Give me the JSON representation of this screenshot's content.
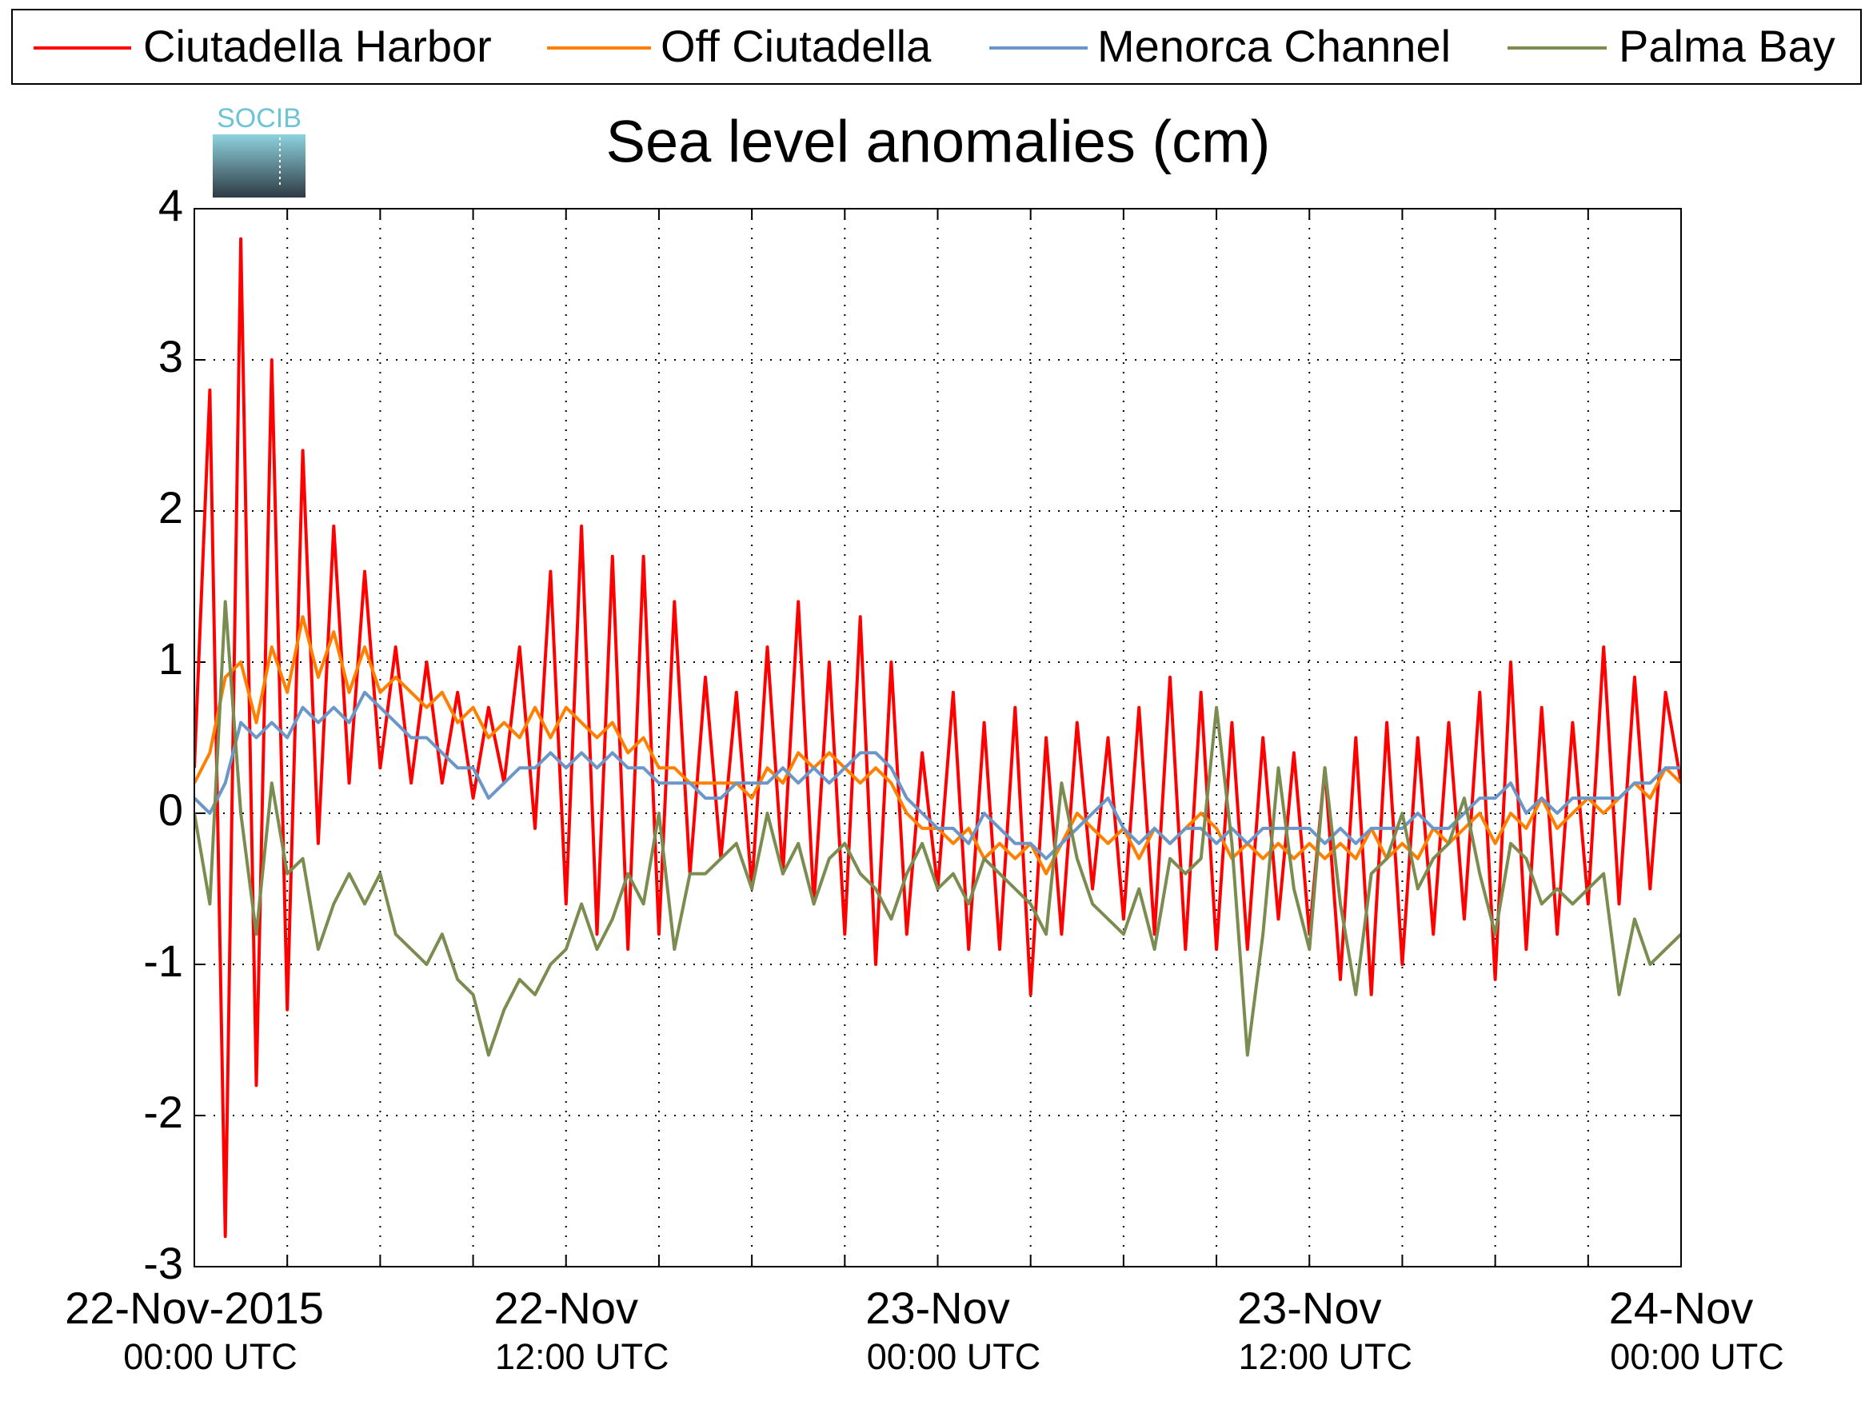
{
  "logo_text": "SOCIB",
  "chart_data": {
    "type": "line",
    "title": "Sea level anomalies (cm)",
    "legend": "top",
    "grid": true,
    "xlim": [
      0,
      48
    ],
    "ylim": [
      -3,
      4
    ],
    "yticks": [
      -3,
      -2,
      -1,
      0,
      1,
      2,
      3,
      4
    ],
    "xgrid": [
      0,
      3,
      6,
      9,
      12,
      15,
      18,
      21,
      24,
      27,
      30,
      33,
      36,
      39,
      42,
      45,
      48
    ],
    "xticks": [
      {
        "value": 0,
        "label": "22-Nov-2015",
        "sublabel": "00:00 UTC"
      },
      {
        "value": 12,
        "label": "22-Nov",
        "sublabel": "12:00 UTC"
      },
      {
        "value": 24,
        "label": "23-Nov",
        "sublabel": "00:00 UTC"
      },
      {
        "value": 36,
        "label": "23-Nov",
        "sublabel": "12:00 UTC"
      },
      {
        "value": 48,
        "label": "24-Nov",
        "sublabel": "00:00 UTC"
      }
    ],
    "x": [
      0,
      0.5,
      1,
      1.5,
      2,
      2.5,
      3,
      3.5,
      4,
      4.5,
      5,
      5.5,
      6,
      6.5,
      7,
      7.5,
      8,
      8.5,
      9,
      9.5,
      10,
      10.5,
      11,
      11.5,
      12,
      12.5,
      13,
      13.5,
      14,
      14.5,
      15,
      15.5,
      16,
      16.5,
      17,
      17.5,
      18,
      18.5,
      19,
      19.5,
      20,
      20.5,
      21,
      21.5,
      22,
      22.5,
      23,
      23.5,
      24,
      24.5,
      25,
      25.5,
      26,
      26.5,
      27,
      27.5,
      28,
      28.5,
      29,
      29.5,
      30,
      30.5,
      31,
      31.5,
      32,
      32.5,
      33,
      33.5,
      34,
      34.5,
      35,
      35.5,
      36,
      36.5,
      37,
      37.5,
      38,
      38.5,
      39,
      39.5,
      40,
      40.5,
      41,
      41.5,
      42,
      42.5,
      43,
      43.5,
      44,
      44.5,
      45,
      45.5,
      46,
      46.5,
      47,
      47.5,
      48
    ],
    "series": [
      {
        "name": "Ciutadella Harbor",
        "color": "#ff0000",
        "values": [
          0.3,
          2.8,
          -2.8,
          3.8,
          -1.8,
          3.0,
          -1.3,
          2.4,
          -0.2,
          1.9,
          0.2,
          1.6,
          0.3,
          1.1,
          0.2,
          1.0,
          0.2,
          0.8,
          0.1,
          0.7,
          0.2,
          1.1,
          -0.1,
          1.6,
          -0.6,
          1.9,
          -0.8,
          1.7,
          -0.9,
          1.7,
          -0.8,
          1.4,
          -0.4,
          0.9,
          -0.3,
          0.8,
          -0.5,
          1.1,
          -0.4,
          1.4,
          -0.6,
          1.0,
          -0.8,
          1.3,
          -1.0,
          1.0,
          -0.8,
          0.4,
          -0.5,
          0.8,
          -0.9,
          0.6,
          -0.9,
          0.7,
          -1.2,
          0.5,
          -0.8,
          0.6,
          -0.5,
          0.5,
          -0.7,
          0.7,
          -0.8,
          0.9,
          -0.9,
          0.8,
          -0.9,
          0.6,
          -0.9,
          0.5,
          -0.7,
          0.4,
          -0.8,
          0.3,
          -1.1,
          0.5,
          -1.2,
          0.6,
          -1.0,
          0.5,
          -0.8,
          0.6,
          -0.7,
          0.8,
          -1.1,
          1.0,
          -0.9,
          0.7,
          -0.8,
          0.6,
          -0.6,
          1.1,
          -0.6,
          0.9,
          -0.5,
          0.8,
          0.2
        ]
      },
      {
        "name": "Off Ciutadella",
        "color": "#ff8000",
        "values": [
          0.2,
          0.4,
          0.9,
          1.0,
          0.6,
          1.1,
          0.8,
          1.3,
          0.9,
          1.2,
          0.8,
          1.1,
          0.8,
          0.9,
          0.8,
          0.7,
          0.8,
          0.6,
          0.7,
          0.5,
          0.6,
          0.5,
          0.7,
          0.5,
          0.7,
          0.6,
          0.5,
          0.6,
          0.4,
          0.5,
          0.3,
          0.3,
          0.2,
          0.2,
          0.2,
          0.2,
          0.1,
          0.3,
          0.2,
          0.4,
          0.3,
          0.4,
          0.3,
          0.2,
          0.3,
          0.2,
          0.0,
          -0.1,
          -0.1,
          -0.2,
          -0.1,
          -0.3,
          -0.2,
          -0.3,
          -0.2,
          -0.4,
          -0.2,
          0.0,
          -0.1,
          -0.2,
          -0.1,
          -0.3,
          -0.1,
          -0.2,
          -0.1,
          0.0,
          -0.1,
          -0.3,
          -0.2,
          -0.3,
          -0.2,
          -0.3,
          -0.2,
          -0.3,
          -0.2,
          -0.3,
          -0.1,
          -0.3,
          -0.2,
          -0.3,
          -0.1,
          -0.2,
          -0.1,
          0.0,
          -0.2,
          0.0,
          -0.1,
          0.1,
          -0.1,
          0.0,
          0.1,
          0.0,
          0.1,
          0.2,
          0.1,
          0.3,
          0.2
        ]
      },
      {
        "name": "Menorca Channel",
        "color": "#6a96c8",
        "values": [
          0.1,
          0.0,
          0.2,
          0.6,
          0.5,
          0.6,
          0.5,
          0.7,
          0.6,
          0.7,
          0.6,
          0.8,
          0.7,
          0.6,
          0.5,
          0.5,
          0.4,
          0.3,
          0.3,
          0.1,
          0.2,
          0.3,
          0.3,
          0.4,
          0.3,
          0.4,
          0.3,
          0.4,
          0.3,
          0.3,
          0.2,
          0.2,
          0.2,
          0.1,
          0.1,
          0.2,
          0.2,
          0.2,
          0.3,
          0.2,
          0.3,
          0.2,
          0.3,
          0.4,
          0.4,
          0.3,
          0.1,
          0.0,
          -0.1,
          -0.1,
          -0.2,
          0.0,
          -0.1,
          -0.2,
          -0.2,
          -0.3,
          -0.2,
          -0.1,
          0.0,
          0.1,
          -0.1,
          -0.2,
          -0.1,
          -0.2,
          -0.1,
          -0.1,
          -0.2,
          -0.1,
          -0.2,
          -0.1,
          -0.1,
          -0.1,
          -0.1,
          -0.2,
          -0.1,
          -0.2,
          -0.1,
          -0.1,
          -0.1,
          0.0,
          -0.1,
          -0.1,
          0.0,
          0.1,
          0.1,
          0.2,
          0.0,
          0.1,
          0.0,
          0.1,
          0.1,
          0.1,
          0.1,
          0.2,
          0.2,
          0.3,
          0.3
        ]
      },
      {
        "name": "Palma Bay",
        "color": "#7a8c4f",
        "values": [
          0.0,
          -0.6,
          1.4,
          0.0,
          -0.8,
          0.2,
          -0.4,
          -0.3,
          -0.9,
          -0.6,
          -0.4,
          -0.6,
          -0.4,
          -0.8,
          -0.9,
          -1.0,
          -0.8,
          -1.1,
          -1.2,
          -1.6,
          -1.3,
          -1.1,
          -1.2,
          -1.0,
          -0.9,
          -0.6,
          -0.9,
          -0.7,
          -0.4,
          -0.6,
          0.0,
          -0.9,
          -0.4,
          -0.4,
          -0.3,
          -0.2,
          -0.5,
          0.0,
          -0.4,
          -0.2,
          -0.6,
          -0.3,
          -0.2,
          -0.4,
          -0.5,
          -0.7,
          -0.4,
          -0.2,
          -0.5,
          -0.4,
          -0.6,
          -0.3,
          -0.4,
          -0.5,
          -0.6,
          -0.8,
          0.2,
          -0.3,
          -0.6,
          -0.7,
          -0.8,
          -0.5,
          -0.9,
          -0.3,
          -0.4,
          -0.3,
          0.7,
          -0.2,
          -1.6,
          -0.8,
          0.3,
          -0.5,
          -0.9,
          0.3,
          -0.6,
          -1.2,
          -0.4,
          -0.3,
          0.0,
          -0.5,
          -0.3,
          -0.2,
          0.1,
          -0.4,
          -0.8,
          -0.2,
          -0.3,
          -0.6,
          -0.5,
          -0.6,
          -0.5,
          -0.4,
          -1.2,
          -0.7,
          -1.0,
          -0.9,
          -0.8
        ]
      }
    ]
  }
}
